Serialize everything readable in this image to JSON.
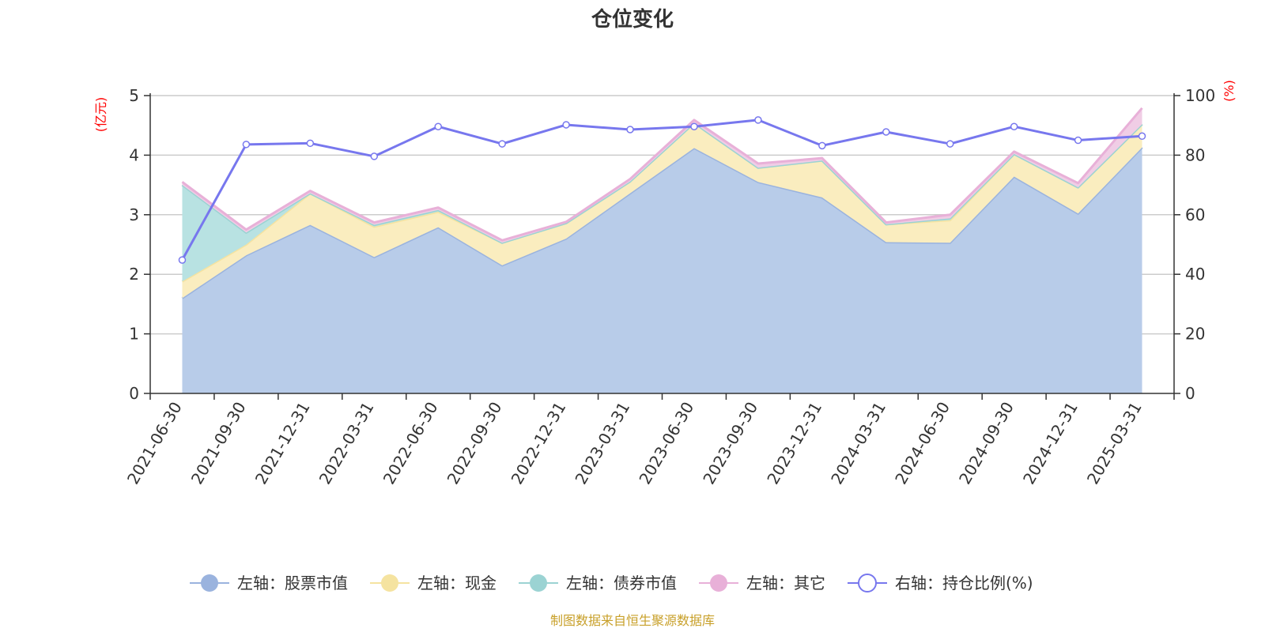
{
  "chart_data": {
    "type": "area",
    "title": "仓位变化",
    "left_axis_unit": "(亿元)",
    "right_axis_unit": "(%)",
    "left_ylim": [
      0,
      5
    ],
    "left_yticks": [
      0,
      1,
      2,
      3,
      4,
      5
    ],
    "right_ylim": [
      0,
      100
    ],
    "right_yticks": [
      0,
      20,
      40,
      60,
      80,
      100
    ],
    "grid": true,
    "legend_position": "bottom",
    "categories": [
      "2021-06-30",
      "2021-09-30",
      "2021-12-31",
      "2022-03-31",
      "2022-06-30",
      "2022-09-30",
      "2022-12-31",
      "2023-03-31",
      "2023-06-30",
      "2023-09-30",
      "2023-12-31",
      "2024-03-31",
      "2024-06-30",
      "2024-09-30",
      "2024-12-31",
      "2025-03-31"
    ],
    "series": [
      {
        "name": "左轴：股票市值",
        "axis": "left",
        "stacked": true,
        "color": "#9ab3de",
        "fill": "#b8cce9",
        "values": [
          1.6,
          2.32,
          2.83,
          2.29,
          2.79,
          2.15,
          2.6,
          3.36,
          4.12,
          3.55,
          3.29,
          2.54,
          2.53,
          3.64,
          3.02,
          4.13
        ]
      },
      {
        "name": "左轴：现金",
        "axis": "left",
        "stacked": true,
        "color": "#f5e3a0",
        "fill": "#faedbf",
        "values": [
          0.28,
          0.18,
          0.53,
          0.51,
          0.26,
          0.38,
          0.26,
          0.2,
          0.42,
          0.24,
          0.62,
          0.3,
          0.38,
          0.38,
          0.44,
          0.39
        ]
      },
      {
        "name": "左轴：债券市值",
        "axis": "left",
        "stacked": true,
        "color": "#9bd3d3",
        "fill": "#b8e2e2",
        "values": [
          1.62,
          0.2,
          0.0,
          0.03,
          0.03,
          0.0,
          0.0,
          0.0,
          0.0,
          0.0,
          0.0,
          0.0,
          0.03,
          0.0,
          0.0,
          0.0
        ]
      },
      {
        "name": "左轴：其它",
        "axis": "left",
        "stacked": true,
        "color": "#e8b0d8",
        "fill": "#f0cde5",
        "values": [
          0.05,
          0.05,
          0.04,
          0.04,
          0.04,
          0.04,
          0.02,
          0.04,
          0.05,
          0.07,
          0.04,
          0.03,
          0.06,
          0.04,
          0.07,
          0.27
        ]
      },
      {
        "name": "右轴：持仓比例(%)",
        "axis": "right",
        "stacked": false,
        "color": "#7777ee",
        "values": [
          44.8,
          83.6,
          84.0,
          79.6,
          89.6,
          83.8,
          90.2,
          88.6,
          89.6,
          91.8,
          83.2,
          87.8,
          83.8,
          89.6,
          85.0,
          86.4
        ]
      }
    ]
  },
  "footer": {
    "source": "制图数据来自恒生聚源数据库"
  }
}
